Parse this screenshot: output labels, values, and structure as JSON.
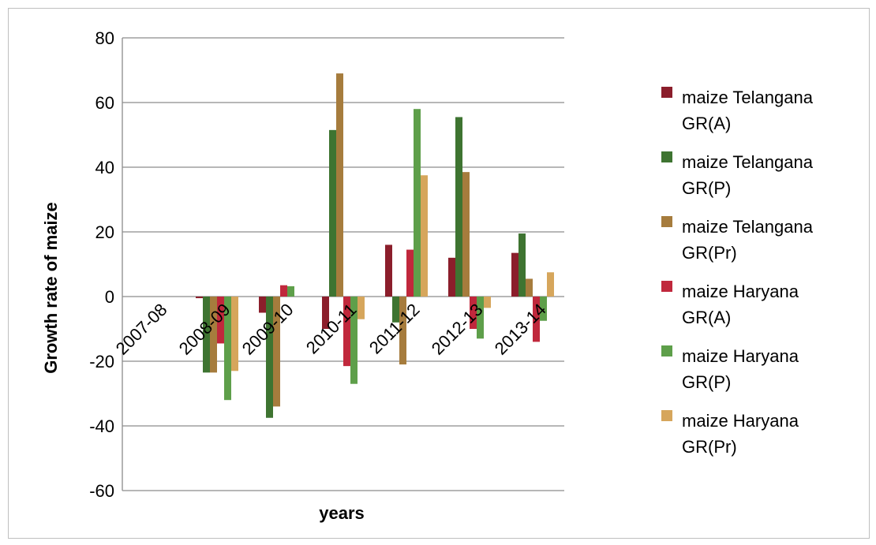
{
  "chart_data": {
    "type": "bar",
    "xlabel": "years",
    "ylabel": "Growth rate of maize",
    "ylim": [
      -60,
      80
    ],
    "yticks": [
      80,
      60,
      40,
      20,
      0,
      -20,
      -40,
      -60
    ],
    "grid": true,
    "legend_position": "right",
    "categories": [
      "2007-08",
      "2008-09",
      "2009-10",
      "2010-11",
      "2011-12",
      "2012-13",
      "2013-14"
    ],
    "series": [
      {
        "name": "maize Telangana GR(A)",
        "color": "#8B1E2B",
        "values": [
          0,
          -0.5,
          -5,
          -10,
          16,
          12,
          13.5
        ]
      },
      {
        "name": "maize Telangana GR(P)",
        "color": "#3E7431",
        "values": [
          0,
          -23.5,
          -37.5,
          51.5,
          -8,
          55.5,
          19.5
        ]
      },
      {
        "name": "maize Telangana GR(Pr)",
        "color": "#A67C3D",
        "values": [
          0,
          -23.5,
          -34,
          69,
          -21,
          38.5,
          5.5
        ]
      },
      {
        "name": "maize Haryana GR(A)",
        "color": "#C0283C",
        "values": [
          0,
          -14.5,
          3.5,
          -21.5,
          14.5,
          -10,
          -14
        ]
      },
      {
        "name": "maize Haryana GR(P)",
        "color": "#5E9F4A",
        "values": [
          0,
          -32,
          3.2,
          -27,
          58,
          -13,
          -7.5
        ]
      },
      {
        "name": "maize Haryana GR(Pr)",
        "color": "#D6A65C",
        "values": [
          0,
          -23,
          0,
          -7,
          37.5,
          -3.5,
          7.5
        ]
      }
    ]
  }
}
